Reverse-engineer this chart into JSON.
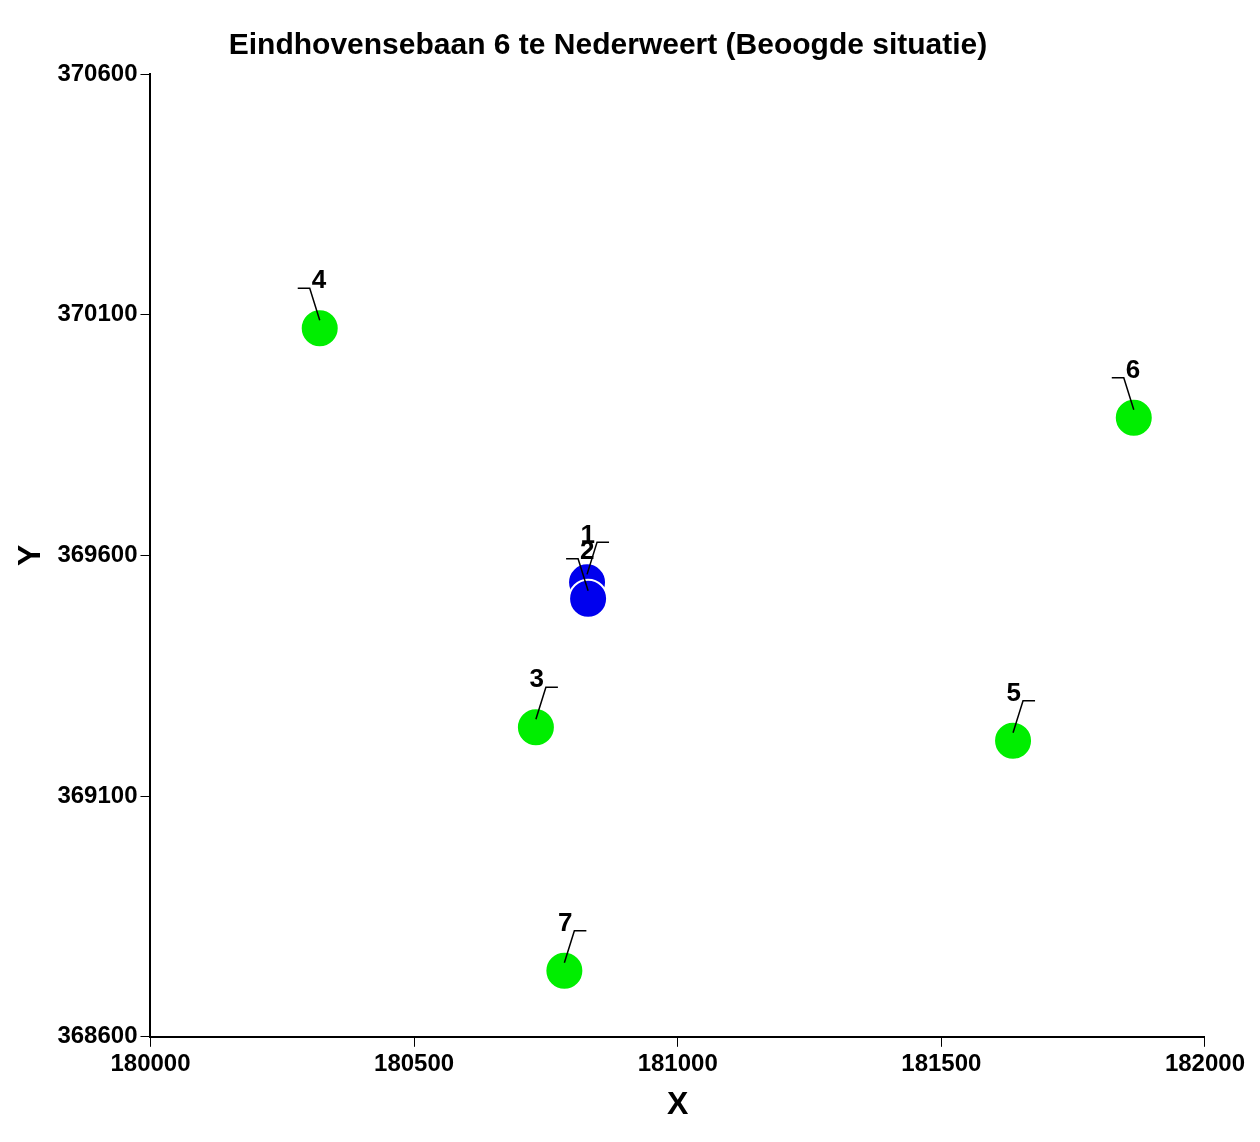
{
  "chart_data": {
    "type": "scatter",
    "title": "Eindhovensebaan 6 te Nederweert (Beoogde situatie)",
    "xlabel": "X",
    "ylabel": "Y",
    "series": [
      {
        "color": "#0000ee",
        "x": [
          180828,
          180830
        ],
        "values": [
          369544,
          369510
        ]
      },
      {
        "color": "#00ee00",
        "x": [
          180731,
          180321,
          181636,
          181865,
          180785
        ],
        "values": [
          369243,
          370072,
          369215,
          369886,
          368737
        ]
      }
    ],
    "xlim": [
      180000,
      182000
    ],
    "xticks": [
      180000,
      180500,
      181000,
      181500,
      182000
    ],
    "ylim": [
      368600,
      370600
    ],
    "yticks": [
      368600,
      369100,
      369600,
      370100,
      370600
    ],
    "grid": false,
    "legend": false,
    "marker": "circle",
    "annotations": [
      {
        "text": "1",
        "x": 180828,
        "y": 369544
      },
      {
        "text": "2",
        "x": 180830,
        "y": 369510
      },
      {
        "text": "3",
        "x": 180731,
        "y": 369243
      },
      {
        "text": "4",
        "x": 180321,
        "y": 370072
      },
      {
        "text": "5",
        "x": 181636,
        "y": 369215
      },
      {
        "text": "6",
        "x": 181865,
        "y": 369886
      },
      {
        "text": "7",
        "x": 180785,
        "y": 368737
      }
    ]
  }
}
